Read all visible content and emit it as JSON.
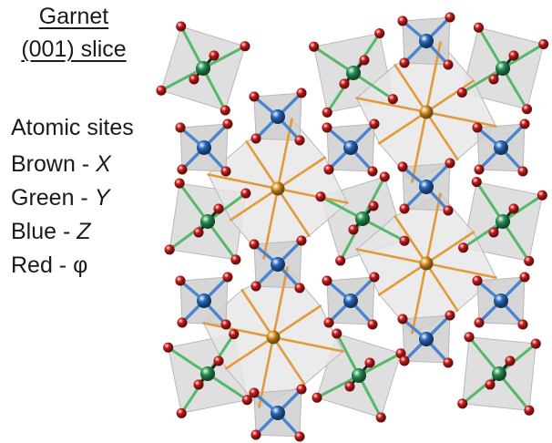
{
  "title": {
    "line1": "Garnet",
    "line2": "(001) slice"
  },
  "legend": {
    "heading": "Atomic sites",
    "items": [
      {
        "label": "Brown - ",
        "symbol": "X",
        "italic": true
      },
      {
        "label": "Green - ",
        "symbol": "Y",
        "italic": true
      },
      {
        "label": "Blue - ",
        "symbol": "Z",
        "italic": true
      },
      {
        "label": "Red - ",
        "symbol": "φ",
        "italic": false
      }
    ]
  },
  "colors": {
    "X": "#e29a2c",
    "Y": "#2e9a5c",
    "Z": "#2f6fc4",
    "phi": "#d41f1f",
    "bond_X": "#e39a3a",
    "bond_Y": "#56b86a",
    "bond_Z": "#4a86cf",
    "polyhedron": "#cfcfcf"
  },
  "icons": {
    "crystal": "crystal-structure-diagram"
  }
}
